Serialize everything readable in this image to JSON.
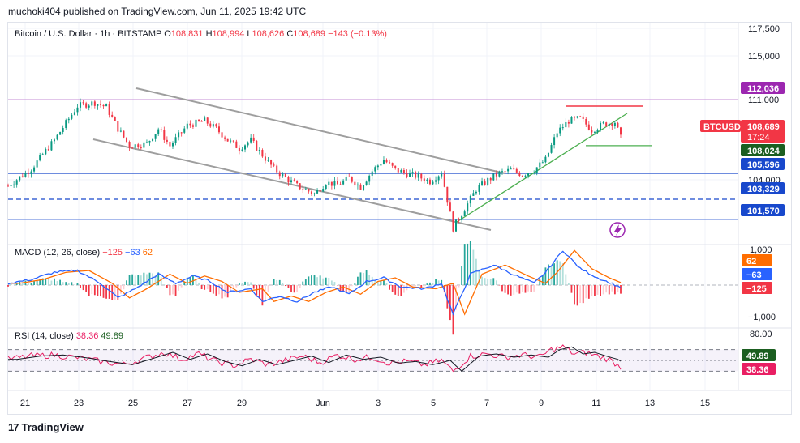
{
  "header": {
    "published": "muchoki404 published on TradingView.com, Jun 11, 2025 19:42 UTC"
  },
  "legend": {
    "symbol": "Bitcoin / U.S. Dollar · 1h · BITSTAMP",
    "open_label": "O",
    "open": "108,831",
    "high_label": "H",
    "high": "108,994",
    "low_label": "L",
    "low": "108,626",
    "close_label": "C",
    "close": "108,689",
    "change": "−143 (−0.13%)"
  },
  "colors": {
    "up": "#089981",
    "down": "#f23645",
    "macd": "#2962ff",
    "signal": "#ff6d00",
    "rsi": "#e91e63",
    "rsi_ma": "#131722",
    "grid": "#f0f3fa",
    "channel": "#9e9e9e",
    "purple": "#9c27b0",
    "blue": "#1848cc",
    "trend": "#4caf50"
  },
  "price_axis": {
    "ticks": [
      "117,500",
      "115,000",
      "111,000",
      "104,000"
    ],
    "level_labels": [
      {
        "value": "112,036",
        "color": "#9c27b0",
        "text_color": "#ffffff"
      },
      {
        "value": "108,689",
        "color": "#f23645",
        "text_color": "#ffffff",
        "sub": "17:24"
      },
      {
        "value": "108,024",
        "color": "#1b5e20",
        "text_color": "#ffffff"
      },
      {
        "value": "105,596",
        "color": "#1848cc",
        "text_color": "#ffffff"
      },
      {
        "value": "103,329",
        "color": "#1848cc",
        "text_color": "#ffffff"
      },
      {
        "value": "101,570",
        "color": "#1848cc",
        "text_color": "#ffffff"
      }
    ],
    "symbol_tag": "BTCUSD"
  },
  "macd": {
    "legend": "MACD (12, 26, close)",
    "hist": "−125",
    "macd": "−63",
    "signal": "62",
    "ticks": [
      "1,000",
      "−1,000"
    ],
    "labels": [
      {
        "value": "62",
        "color": "#ff6d00"
      },
      {
        "value": "−63",
        "color": "#2962ff"
      },
      {
        "value": "−125",
        "color": "#f23645"
      }
    ]
  },
  "rsi": {
    "legend": "RSI (14, close)",
    "value": "38.36",
    "ma": "49.89",
    "ticks": [
      "80.00"
    ],
    "labels": [
      {
        "value": "49.89",
        "color": "#1b5e20"
      },
      {
        "value": "38.36",
        "color": "#e91e63"
      }
    ]
  },
  "x_axis": {
    "labels": [
      "21",
      "23",
      "25",
      "27",
      "29",
      "Jun",
      "3",
      "5",
      "7",
      "9",
      "11",
      "13",
      "15"
    ]
  },
  "footer": {
    "brand": "TradingView"
  },
  "chart_data": {
    "type": "candlestick",
    "symbol": "BTCUSD",
    "interval": "1h",
    "y_range": [
      99500,
      118800
    ],
    "price_levels": [
      {
        "value": 112036,
        "style": "solid",
        "color": "#9c27b0"
      },
      {
        "value": 105596,
        "style": "solid",
        "color": "#1848cc"
      },
      {
        "value": 103329,
        "style": "dashed",
        "color": "#1848cc"
      },
      {
        "value": 101570,
        "style": "solid",
        "color": "#1848cc"
      },
      {
        "value": 108024,
        "style": "solid",
        "color": "#4caf50"
      }
    ],
    "price_path": [
      [
        0,
        104500
      ],
      [
        4,
        106000
      ],
      [
        8,
        108500
      ],
      [
        12,
        111500
      ],
      [
        15,
        111800
      ],
      [
        17,
        111400
      ],
      [
        19,
        109500
      ],
      [
        21,
        108000
      ],
      [
        24,
        108200
      ],
      [
        26,
        109500
      ],
      [
        28,
        108000
      ],
      [
        31,
        109800
      ],
      [
        34,
        110200
      ],
      [
        36,
        109500
      ],
      [
        38,
        108500
      ],
      [
        40,
        107800
      ],
      [
        42,
        108500
      ],
      [
        44,
        107200
      ],
      [
        46,
        106000
      ],
      [
        48,
        105200
      ],
      [
        50,
        104500
      ],
      [
        53,
        103800
      ],
      [
        55,
        104800
      ],
      [
        57,
        104600
      ],
      [
        59,
        105200
      ],
      [
        61,
        104400
      ],
      [
        63,
        105800
      ],
      [
        65,
        106800
      ],
      [
        67,
        105900
      ],
      [
        69,
        105600
      ],
      [
        71,
        105300
      ],
      [
        73,
        104900
      ],
      [
        75,
        105700
      ],
      [
        77,
        100800
      ],
      [
        79,
        102500
      ],
      [
        81,
        104200
      ],
      [
        83,
        105000
      ],
      [
        85,
        105600
      ],
      [
        87,
        105900
      ],
      [
        89,
        105500
      ],
      [
        91,
        105900
      ],
      [
        93,
        106800
      ],
      [
        95,
        109200
      ],
      [
        97,
        110200
      ],
      [
        99,
        110400
      ],
      [
        101,
        109400
      ],
      [
        103,
        109900
      ],
      [
        105,
        110100
      ],
      [
        106,
        108700
      ]
    ],
    "macd_path": [
      [
        0,
        0.05
      ],
      [
        4,
        0.15
      ],
      [
        8,
        0.35
      ],
      [
        12,
        0.4
      ],
      [
        16,
        0.05
      ],
      [
        19,
        -0.35
      ],
      [
        22,
        -0.1
      ],
      [
        26,
        0.3
      ],
      [
        29,
        0.05
      ],
      [
        32,
        0.25
      ],
      [
        35,
        0.1
      ],
      [
        38,
        -0.2
      ],
      [
        42,
        -0.1
      ],
      [
        44,
        -0.45
      ],
      [
        47,
        -0.3
      ],
      [
        50,
        -0.45
      ],
      [
        53,
        -0.2
      ],
      [
        56,
        -0.05
      ],
      [
        59,
        -0.25
      ],
      [
        62,
        0.1
      ],
      [
        65,
        0.2
      ],
      [
        68,
        -0.05
      ],
      [
        72,
        -0.1
      ],
      [
        75,
        0.05
      ],
      [
        77,
        -0.8
      ],
      [
        80,
        0.3
      ],
      [
        84,
        0.55
      ],
      [
        88,
        0.25
      ],
      [
        91,
        0.05
      ],
      [
        93,
        0.35
      ],
      [
        96,
        0.95
      ],
      [
        99,
        0.45
      ],
      [
        102,
        0.2
      ],
      [
        106,
        -0.06
      ]
    ],
    "rsi_path": [
      [
        0,
        52
      ],
      [
        4,
        58
      ],
      [
        8,
        60
      ],
      [
        12,
        55
      ],
      [
        16,
        48
      ],
      [
        20,
        42
      ],
      [
        24,
        55
      ],
      [
        27,
        65
      ],
      [
        30,
        52
      ],
      [
        33,
        62
      ],
      [
        36,
        48
      ],
      [
        39,
        40
      ],
      [
        42,
        52
      ],
      [
        45,
        42
      ],
      [
        48,
        50
      ],
      [
        51,
        58
      ],
      [
        54,
        46
      ],
      [
        57,
        60
      ],
      [
        60,
        52
      ],
      [
        63,
        56
      ],
      [
        66,
        45
      ],
      [
        69,
        48
      ],
      [
        72,
        42
      ],
      [
        75,
        50
      ],
      [
        77,
        30
      ],
      [
        80,
        58
      ],
      [
        83,
        62
      ],
      [
        86,
        56
      ],
      [
        89,
        60
      ],
      [
        92,
        56
      ],
      [
        94,
        70
      ],
      [
        96,
        75
      ],
      [
        98,
        62
      ],
      [
        100,
        65
      ],
      [
        102,
        58
      ],
      [
        104,
        52
      ],
      [
        106,
        38
      ]
    ],
    "rsi_bands": [
      70,
      50,
      30
    ]
  }
}
